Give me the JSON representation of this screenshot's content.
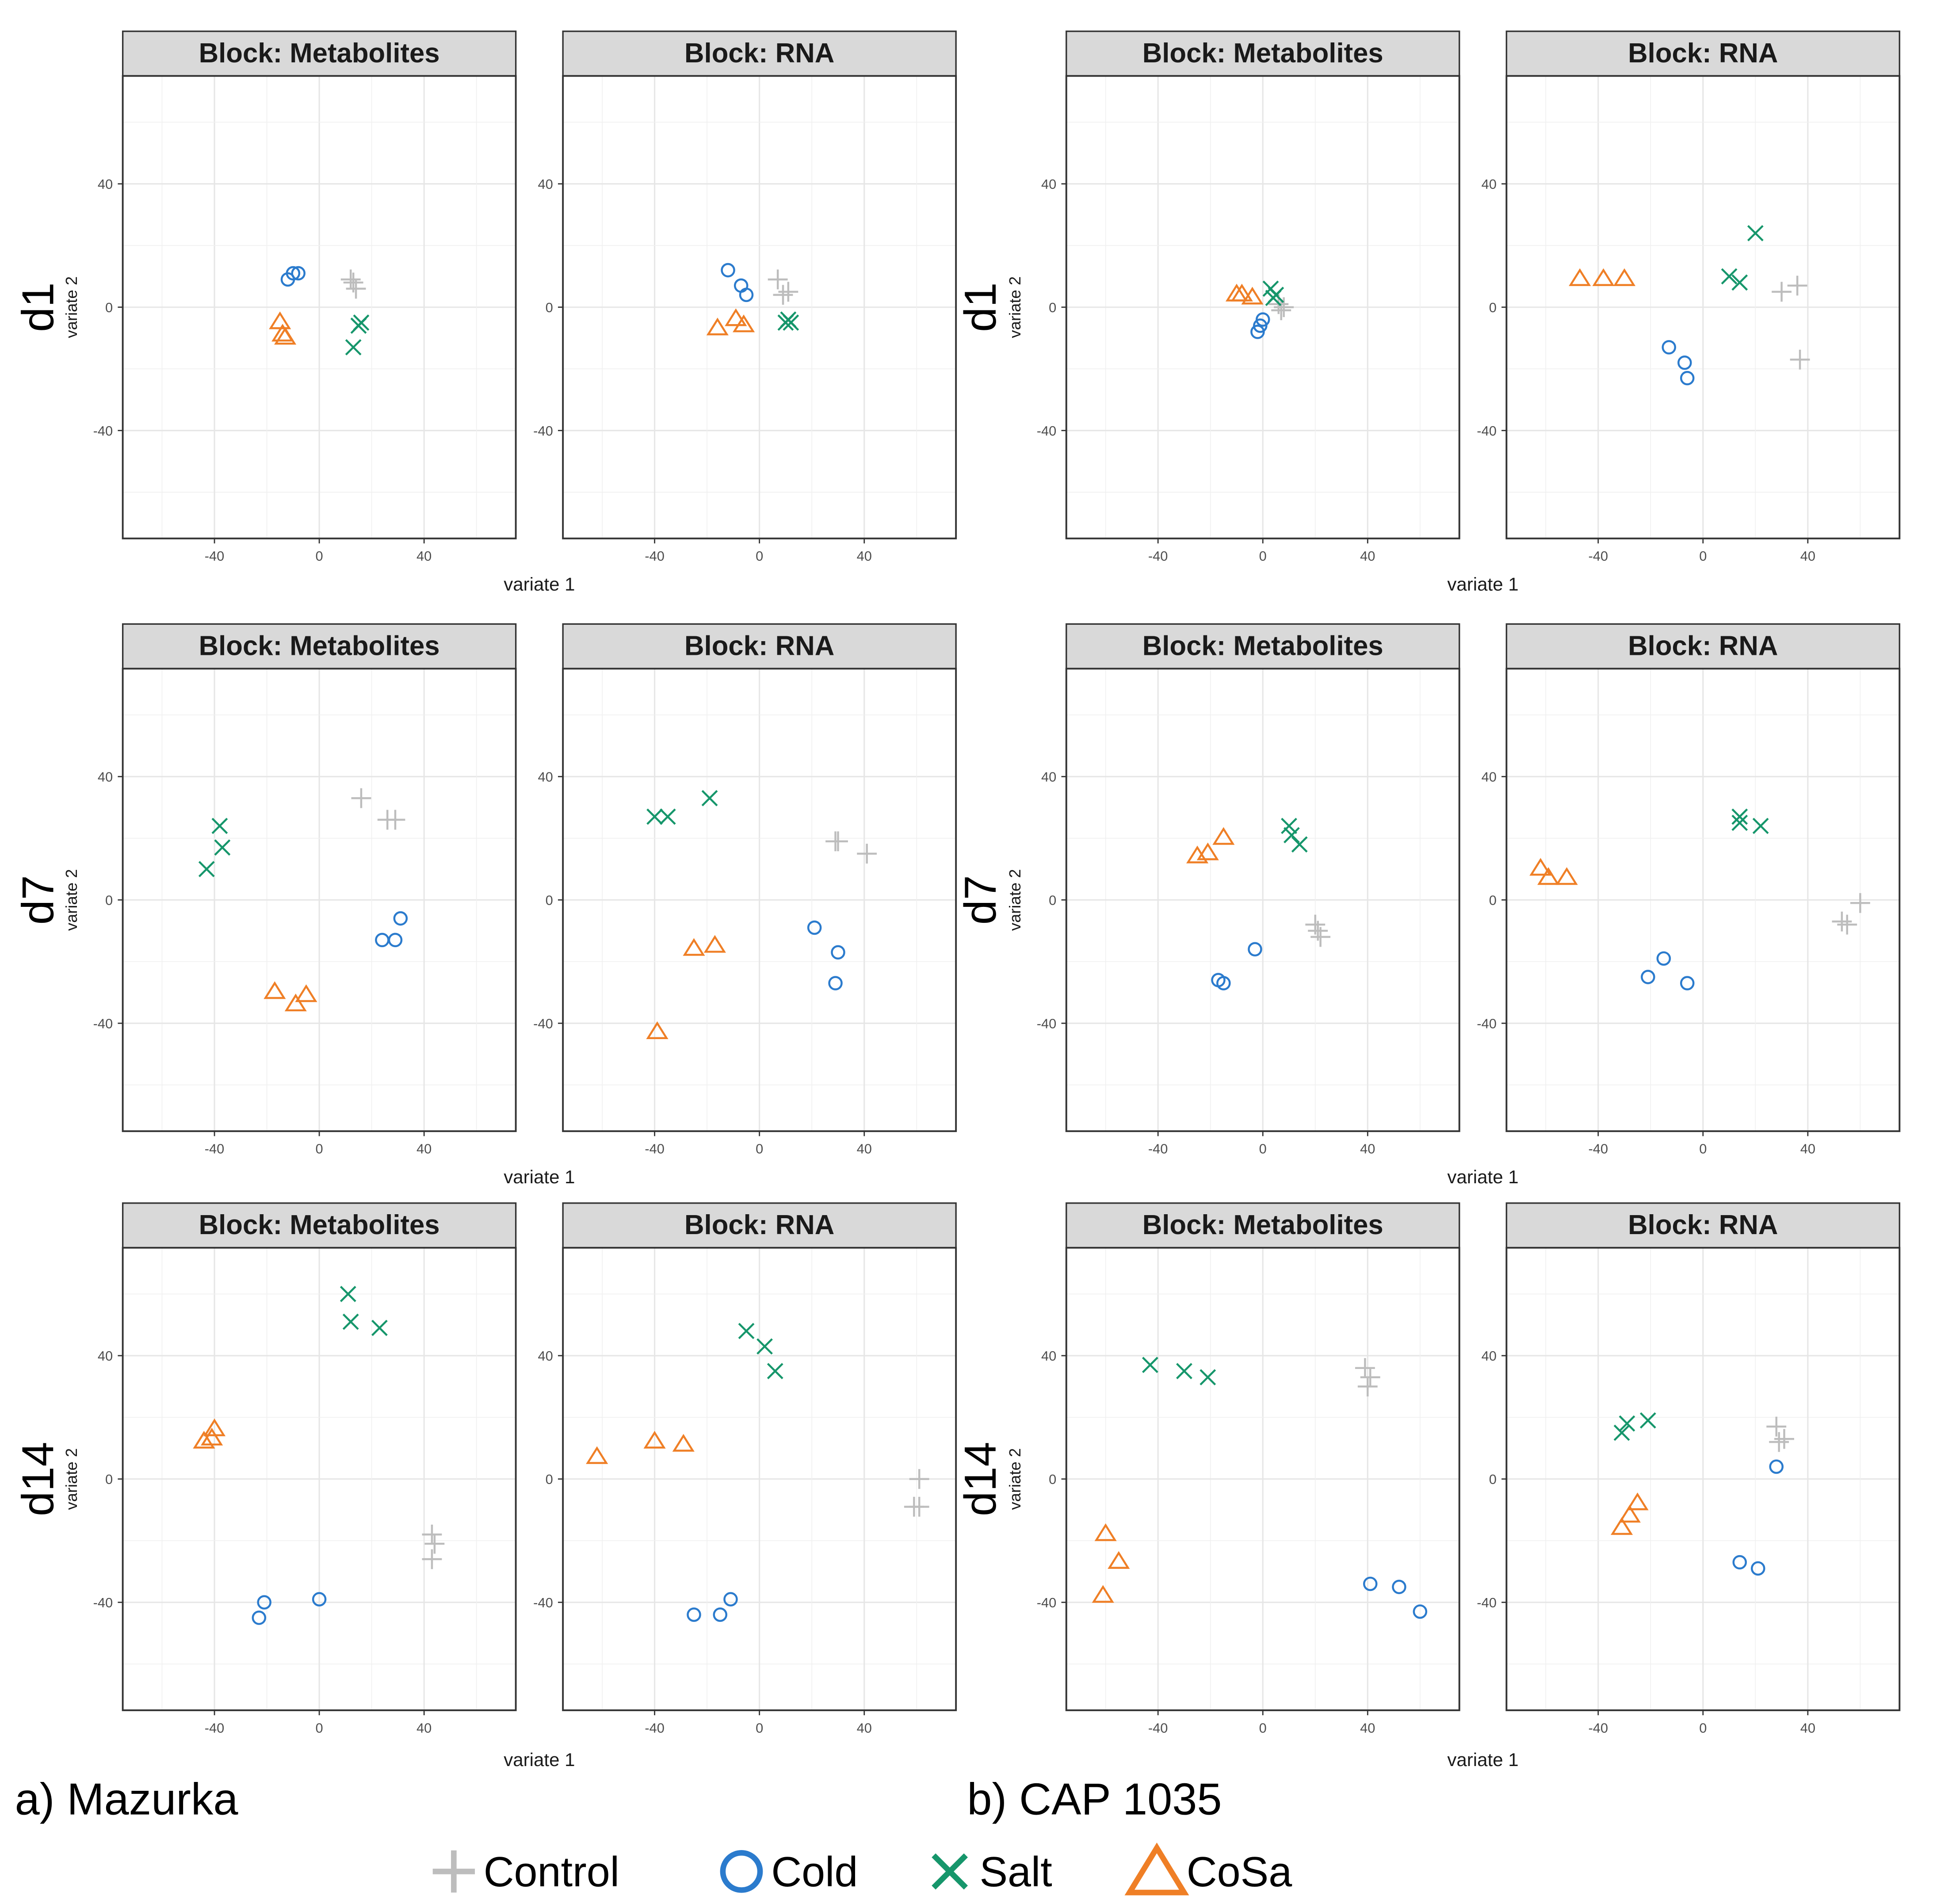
{
  "colors": {
    "Control": "#bdbdbd",
    "Cold": "#2b7bcd",
    "Salt": "#16966b",
    "CoSa": "#ef7f26"
  },
  "axes": {
    "xlabel": "variate 1",
    "ylabel": "variate 2",
    "xlim": [
      -75,
      75
    ],
    "ylim": [
      -75,
      75
    ],
    "ticks": [
      -40,
      0,
      40
    ],
    "tick_labels": [
      "-40",
      "0",
      "40"
    ]
  },
  "captions": {
    "left": "a) Mazurka",
    "right": "b) CAP 1035"
  },
  "legend": [
    {
      "label": "Control",
      "symbol": "plus",
      "color": "#bdbdbd"
    },
    {
      "label": "Cold",
      "symbol": "circle",
      "color": "#2b7bcd"
    },
    {
      "label": "Salt",
      "symbol": "x",
      "color": "#16966b"
    },
    {
      "label": "CoSa",
      "symbol": "triangle",
      "color": "#ef7f26"
    }
  ],
  "rows": [
    "d1",
    "d7",
    "d14"
  ],
  "chart_data": [
    {
      "type": "scatter",
      "title": "Block: Metabolites",
      "variety": "Mazurka",
      "day": "d1",
      "xlabel": "",
      "ylabel": "variate 2",
      "series": [
        {
          "name": "Control",
          "points": [
            [
              12,
              9
            ],
            [
              14,
              6
            ],
            [
              13,
              8
            ]
          ]
        },
        {
          "name": "Cold",
          "points": [
            [
              -10,
              11
            ],
            [
              -8,
              11
            ],
            [
              -12,
              9
            ]
          ]
        },
        {
          "name": "Salt",
          "points": [
            [
              15,
              -6
            ],
            [
              13,
              -13
            ],
            [
              16,
              -5
            ]
          ]
        },
        {
          "name": "CoSa",
          "points": [
            [
              -15,
              -5
            ],
            [
              -14,
              -9
            ],
            [
              -13,
              -10
            ]
          ]
        }
      ]
    },
    {
      "type": "scatter",
      "title": "Block: RNA",
      "variety": "Mazurka",
      "day": "d1",
      "xlabel": "",
      "ylabel": "",
      "series": [
        {
          "name": "Control",
          "points": [
            [
              7,
              9
            ],
            [
              9,
              4
            ],
            [
              11,
              5
            ]
          ]
        },
        {
          "name": "Cold",
          "points": [
            [
              -12,
              12
            ],
            [
              -7,
              7
            ],
            [
              -5,
              4
            ]
          ]
        },
        {
          "name": "Salt",
          "points": [
            [
              12,
              -5
            ],
            [
              10,
              -5
            ],
            [
              11,
              -4
            ]
          ]
        },
        {
          "name": "CoSa",
          "points": [
            [
              -16,
              -7
            ],
            [
              -9,
              -4
            ],
            [
              -6,
              -6
            ]
          ]
        }
      ]
    },
    {
      "type": "scatter",
      "title": "Block: Metabolites",
      "variety": "CAP 1035",
      "day": "d1",
      "xlabel": "",
      "ylabel": "variate 2",
      "series": [
        {
          "name": "Control",
          "points": [
            [
              6,
              1
            ],
            [
              7,
              -1
            ],
            [
              8,
              0
            ]
          ]
        },
        {
          "name": "Cold",
          "points": [
            [
              -2,
              -8
            ],
            [
              -1,
              -6
            ],
            [
              0,
              -4
            ]
          ]
        },
        {
          "name": "Salt",
          "points": [
            [
              3,
              6
            ],
            [
              4,
              3
            ],
            [
              5,
              4
            ]
          ]
        },
        {
          "name": "CoSa",
          "points": [
            [
              -10,
              4
            ],
            [
              -8,
              4
            ],
            [
              -4,
              3
            ]
          ]
        }
      ]
    },
    {
      "type": "scatter",
      "title": "Block: RNA",
      "variety": "CAP 1035",
      "day": "d1",
      "xlabel": "",
      "ylabel": "",
      "series": [
        {
          "name": "Control",
          "points": [
            [
              30,
              5
            ],
            [
              36,
              7
            ],
            [
              37,
              -17
            ]
          ]
        },
        {
          "name": "Cold",
          "points": [
            [
              -13,
              -13
            ],
            [
              -7,
              -18
            ],
            [
              -6,
              -23
            ]
          ]
        },
        {
          "name": "Salt",
          "points": [
            [
              10,
              10
            ],
            [
              14,
              8
            ],
            [
              20,
              24
            ]
          ]
        },
        {
          "name": "CoSa",
          "points": [
            [
              -47,
              9
            ],
            [
              -38,
              9
            ],
            [
              -30,
              9
            ]
          ]
        }
      ]
    },
    {
      "type": "scatter",
      "title": "Block: Metabolites",
      "variety": "Mazurka",
      "day": "d7",
      "xlabel": "",
      "ylabel": "variate 2",
      "series": [
        {
          "name": "Control",
          "points": [
            [
              16,
              33
            ],
            [
              26,
              26
            ],
            [
              29,
              26
            ]
          ]
        },
        {
          "name": "Cold",
          "points": [
            [
              24,
              -13
            ],
            [
              29,
              -13
            ],
            [
              31,
              -6
            ]
          ]
        },
        {
          "name": "Salt",
          "points": [
            [
              -43,
              10
            ],
            [
              -37,
              17
            ],
            [
              -38,
              24
            ]
          ]
        },
        {
          "name": "CoSa",
          "points": [
            [
              -17,
              -30
            ],
            [
              -9,
              -34
            ],
            [
              -5,
              -31
            ]
          ]
        }
      ]
    },
    {
      "type": "scatter",
      "title": "Block: RNA",
      "variety": "Mazurka",
      "day": "d7",
      "xlabel": "",
      "ylabel": "",
      "series": [
        {
          "name": "Control",
          "points": [
            [
              29,
              19
            ],
            [
              30,
              19
            ],
            [
              41,
              15
            ]
          ]
        },
        {
          "name": "Cold",
          "points": [
            [
              21,
              -9
            ],
            [
              30,
              -17
            ],
            [
              29,
              -27
            ]
          ]
        },
        {
          "name": "Salt",
          "points": [
            [
              -40,
              27
            ],
            [
              -35,
              27
            ],
            [
              -19,
              33
            ]
          ]
        },
        {
          "name": "CoSa",
          "points": [
            [
              -25,
              -16
            ],
            [
              -17,
              -15
            ],
            [
              -39,
              -43
            ]
          ]
        }
      ]
    },
    {
      "type": "scatter",
      "title": "Block: Metabolites",
      "variety": "CAP 1035",
      "day": "d7",
      "xlabel": "",
      "ylabel": "variate 2",
      "series": [
        {
          "name": "Control",
          "points": [
            [
              20,
              -8
            ],
            [
              21,
              -10
            ],
            [
              22,
              -12
            ]
          ]
        },
        {
          "name": "Cold",
          "points": [
            [
              -3,
              -16
            ],
            [
              -17,
              -26
            ],
            [
              -15,
              -27
            ]
          ]
        },
        {
          "name": "Salt",
          "points": [
            [
              10,
              24
            ],
            [
              11,
              21
            ],
            [
              14,
              18
            ]
          ]
        },
        {
          "name": "CoSa",
          "points": [
            [
              -25,
              14
            ],
            [
              -21,
              15
            ],
            [
              -15,
              20
            ]
          ]
        }
      ]
    },
    {
      "type": "scatter",
      "title": "Block: RNA",
      "variety": "CAP 1035",
      "day": "d7",
      "xlabel": "",
      "ylabel": "",
      "series": [
        {
          "name": "Control",
          "points": [
            [
              53,
              -7
            ],
            [
              55,
              -8
            ],
            [
              60,
              -1
            ]
          ]
        },
        {
          "name": "Cold",
          "points": [
            [
              -21,
              -25
            ],
            [
              -15,
              -19
            ],
            [
              -6,
              -27
            ]
          ]
        },
        {
          "name": "Salt",
          "points": [
            [
              14,
              27
            ],
            [
              14,
              25
            ],
            [
              22,
              24
            ]
          ]
        },
        {
          "name": "CoSa",
          "points": [
            [
              -62,
              10
            ],
            [
              -59,
              7
            ],
            [
              -52,
              7
            ]
          ]
        }
      ]
    },
    {
      "type": "scatter",
      "title": "Block: Metabolites",
      "variety": "Mazurka",
      "day": "d14",
      "xlabel": "variate 1",
      "ylabel": "variate 2",
      "series": [
        {
          "name": "Control",
          "points": [
            [
              43,
              -18
            ],
            [
              44,
              -21
            ],
            [
              43,
              -26
            ]
          ]
        },
        {
          "name": "Cold",
          "points": [
            [
              -23,
              -45
            ],
            [
              -21,
              -40
            ],
            [
              0,
              -39
            ]
          ]
        },
        {
          "name": "Salt",
          "points": [
            [
              11,
              60
            ],
            [
              12,
              51
            ],
            [
              23,
              49
            ]
          ]
        },
        {
          "name": "CoSa",
          "points": [
            [
              -44,
              12
            ],
            [
              -41,
              13
            ],
            [
              -40,
              16
            ]
          ]
        }
      ]
    },
    {
      "type": "scatter",
      "title": "Block: RNA",
      "variety": "Mazurka",
      "day": "d14",
      "xlabel": "variate 1",
      "ylabel": "",
      "series": [
        {
          "name": "Control",
          "points": [
            [
              61,
              0
            ],
            [
              59,
              -9
            ],
            [
              61,
              -9
            ]
          ]
        },
        {
          "name": "Cold",
          "points": [
            [
              -25,
              -44
            ],
            [
              -15,
              -44
            ],
            [
              -11,
              -39
            ]
          ]
        },
        {
          "name": "Salt",
          "points": [
            [
              -5,
              48
            ],
            [
              2,
              43
            ],
            [
              6,
              35
            ]
          ]
        },
        {
          "name": "CoSa",
          "points": [
            [
              -62,
              7
            ],
            [
              -40,
              12
            ],
            [
              -29,
              11
            ]
          ]
        }
      ]
    },
    {
      "type": "scatter",
      "title": "Block: Metabolites",
      "variety": "CAP 1035",
      "day": "d14",
      "xlabel": "",
      "ylabel": "variate 2",
      "series": [
        {
          "name": "Control",
          "points": [
            [
              39,
              36
            ],
            [
              41,
              33
            ],
            [
              40,
              30
            ]
          ]
        },
        {
          "name": "Cold",
          "points": [
            [
              41,
              -34
            ],
            [
              52,
              -35
            ],
            [
              60,
              -43
            ]
          ]
        },
        {
          "name": "Salt",
          "points": [
            [
              -43,
              37
            ],
            [
              -30,
              35
            ],
            [
              -21,
              33
            ]
          ]
        },
        {
          "name": "CoSa",
          "points": [
            [
              -60,
              -18
            ],
            [
              -55,
              -27
            ],
            [
              -61,
              -38
            ]
          ]
        }
      ]
    },
    {
      "type": "scatter",
      "title": "Block: RNA",
      "variety": "CAP 1035",
      "day": "d14",
      "xlabel": "variate 1",
      "ylabel": "",
      "series": [
        {
          "name": "Control",
          "points": [
            [
              28,
              17
            ],
            [
              31,
              13
            ],
            [
              29,
              12
            ]
          ]
        },
        {
          "name": "Cold",
          "points": [
            [
              28,
              4
            ],
            [
              14,
              -27
            ],
            [
              21,
              -29
            ]
          ]
        },
        {
          "name": "Salt",
          "points": [
            [
              -31,
              15
            ],
            [
              -29,
              18
            ],
            [
              -21,
              19
            ]
          ]
        },
        {
          "name": "CoSa",
          "points": [
            [
              -25,
              -8
            ],
            [
              -28,
              -12
            ],
            [
              -31,
              -16
            ]
          ]
        }
      ]
    }
  ]
}
